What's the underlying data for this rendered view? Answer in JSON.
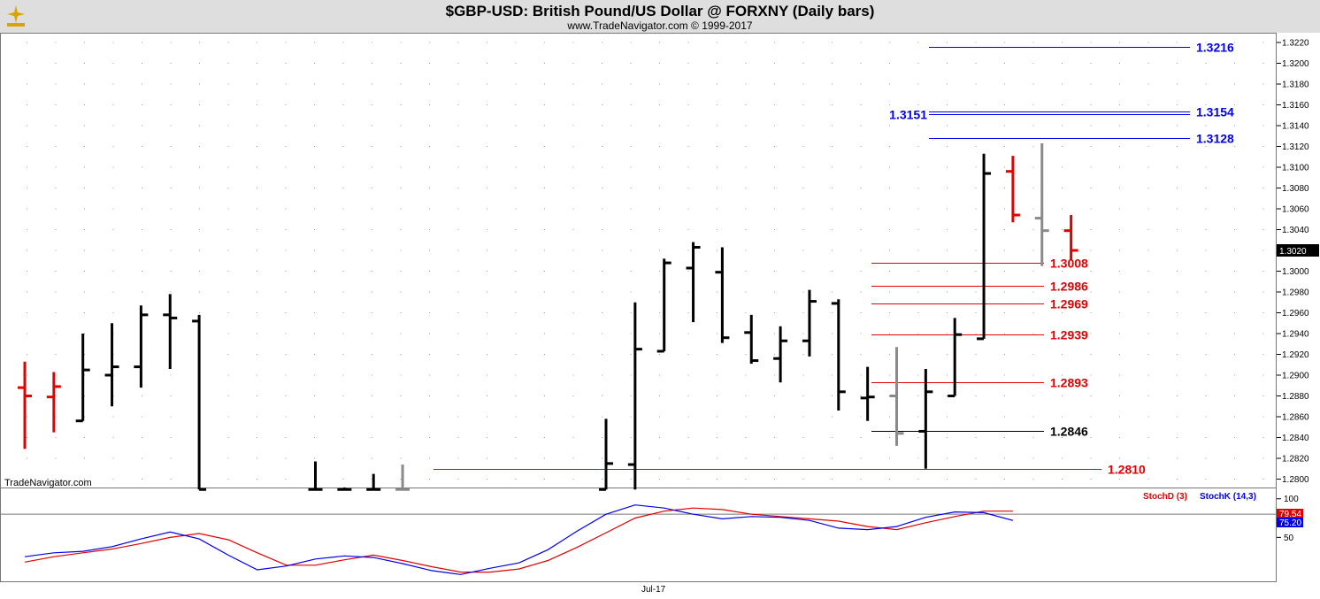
{
  "header": {
    "title": "$GBP-USD:  British Pound/US Dollar @ FORXNY  (Daily bars)",
    "subtitle": "www.TradeNavigator.com © 1999-2017",
    "watermark": "TradeNavigator.com",
    "xaxis_label": "Jul-17"
  },
  "colors": {
    "red": "#e30000",
    "blue": "#0000ee",
    "black": "#000000",
    "gray": "#8a8a8a",
    "grid": "#c8c8c8"
  },
  "chart_data": [
    {
      "type": "ohlc",
      "title": "$GBP-USD:  British Pound/US Dollar @ FORXNY  (Daily bars)",
      "ylim": [
        1.279,
        1.3228
      ],
      "yticks": [
        1.28,
        1.282,
        1.284,
        1.286,
        1.288,
        1.29,
        1.292,
        1.294,
        1.296,
        1.298,
        1.3,
        1.302,
        1.304,
        1.306,
        1.308,
        1.31,
        1.312,
        1.314,
        1.316,
        1.318,
        1.32,
        1.322
      ],
      "ytick_labels": [
        "1.2800",
        "1.2820",
        "1.2840",
        "1.2860",
        "1.2880",
        "1.2900",
        "1.2920",
        "1.2940",
        "1.2960",
        "1.2980",
        "1.3000",
        "1.3020",
        "1.3040",
        "1.3060",
        "1.3080",
        "1.3100",
        "1.3120",
        "1.3140",
        "1.3160",
        "1.3180",
        "1.3200",
        "1.3220"
      ],
      "last_price_label": "1.3020",
      "bars": [
        {
          "o": 1.2888,
          "h": 1.2913,
          "l": 1.2829,
          "c": 1.288,
          "color": "red"
        },
        {
          "o": 1.2879,
          "h": 1.2903,
          "l": 1.2845,
          "c": 1.2889,
          "color": "red"
        },
        {
          "o": 1.2856,
          "h": 1.294,
          "l": 1.2856,
          "c": 1.2905,
          "color": "black"
        },
        {
          "o": 1.29,
          "h": 1.295,
          "l": 1.287,
          "c": 1.2908,
          "color": "black"
        },
        {
          "o": 1.2908,
          "h": 1.2967,
          "l": 1.2888,
          "c": 1.2958,
          "color": "black"
        },
        {
          "o": 1.2958,
          "h": 1.2978,
          "l": 1.2906,
          "c": 1.2955,
          "color": "black"
        },
        {
          "o": 1.2952,
          "h": 1.2958,
          "l": 1.279,
          "c": 1.279,
          "color": "black"
        },
        null,
        null,
        null,
        {
          "o": 1.279,
          "h": 1.2817,
          "l": 1.279,
          "c": 1.279,
          "color": "black"
        },
        {
          "o": 1.279,
          "h": 1.2792,
          "l": 1.279,
          "c": 1.279,
          "color": "black"
        },
        {
          "o": 1.279,
          "h": 1.2805,
          "l": 1.279,
          "c": 1.279,
          "color": "black"
        },
        {
          "o": 1.279,
          "h": 1.2814,
          "l": 1.279,
          "c": 1.279,
          "color": "gray"
        },
        null,
        null,
        null,
        null,
        null,
        null,
        {
          "o": 1.279,
          "h": 1.2858,
          "l": 1.279,
          "c": 1.2815,
          "color": "black"
        },
        {
          "o": 1.2814,
          "h": 1.297,
          "l": 1.279,
          "c": 1.2925,
          "color": "black"
        },
        {
          "o": 1.2923,
          "h": 1.3012,
          "l": 1.2923,
          "c": 1.3008,
          "color": "black"
        },
        {
          "o": 1.3003,
          "h": 1.3028,
          "l": 1.2951,
          "c": 1.3023,
          "color": "black"
        },
        {
          "o": 1.2999,
          "h": 1.3023,
          "l": 1.2931,
          "c": 1.2936,
          "color": "black"
        },
        {
          "o": 1.2941,
          "h": 1.2958,
          "l": 1.2911,
          "c": 1.2914,
          "color": "black"
        },
        {
          "o": 1.2916,
          "h": 1.2947,
          "l": 1.2893,
          "c": 1.2933,
          "color": "black"
        },
        {
          "o": 1.2933,
          "h": 1.2982,
          "l": 1.2918,
          "c": 1.2971,
          "color": "black"
        },
        {
          "o": 1.2969,
          "h": 1.2973,
          "l": 1.2866,
          "c": 1.2884,
          "color": "black"
        },
        {
          "o": 1.2878,
          "h": 1.2908,
          "l": 1.2856,
          "c": 1.2879,
          "color": "black"
        },
        {
          "o": 1.288,
          "h": 1.2927,
          "l": 1.2832,
          "c": 1.2844,
          "color": "gray"
        },
        {
          "o": 1.2846,
          "h": 1.2906,
          "l": 1.281,
          "c": 1.2884,
          "color": "black"
        },
        {
          "o": 1.288,
          "h": 1.2955,
          "l": 1.288,
          "c": 1.2939,
          "color": "black"
        },
        {
          "o": 1.2935,
          "h": 1.3113,
          "l": 1.2935,
          "c": 1.3094,
          "color": "black"
        },
        {
          "o": 1.3096,
          "h": 1.3111,
          "l": 1.3047,
          "c": 1.3054,
          "color": "red"
        },
        {
          "o": 1.3051,
          "h": 1.3123,
          "l": 1.3005,
          "c": 1.3039,
          "color": "gray"
        },
        {
          "o": 1.3039,
          "h": 1.3054,
          "l": 1.3011,
          "c": 1.302,
          "color": "red"
        }
      ],
      "levels": [
        {
          "value": 1.3216,
          "label": "1.3216",
          "color": "blue"
        },
        {
          "value": 1.3154,
          "label": "1.3154",
          "color": "blue"
        },
        {
          "value": 1.3151,
          "label": "1.3151",
          "color": "blue"
        },
        {
          "value": 1.3128,
          "label": "1.3128",
          "color": "blue"
        },
        {
          "value": 1.3008,
          "label": "1.3008",
          "color": "red"
        },
        {
          "value": 1.2986,
          "label": "1.2986",
          "color": "red"
        },
        {
          "value": 1.2969,
          "label": "1.2969",
          "color": "red"
        },
        {
          "value": 1.2939,
          "label": "1.2939",
          "color": "red"
        },
        {
          "value": 1.2893,
          "label": "1.2893",
          "color": "red"
        },
        {
          "value": 1.2846,
          "label": "1.2846",
          "color": "black"
        },
        {
          "value": 1.281,
          "label": "1.2810",
          "color": "red"
        }
      ]
    },
    {
      "type": "line",
      "title": "",
      "ylim": [
        0,
        110
      ],
      "yticks": [
        50,
        100
      ],
      "ytick_labels": [
        "50",
        "100"
      ],
      "reference_line": 80,
      "series": [
        {
          "name": "StochD (3)",
          "color": "red",
          "values": [
            18,
            25,
            30,
            35,
            42,
            50,
            55,
            47,
            30,
            14,
            14,
            21,
            27,
            20,
            12,
            5,
            5,
            9,
            20,
            37,
            56,
            75,
            84,
            88,
            86,
            80,
            77,
            74,
            71,
            64,
            60,
            69,
            77,
            84,
            84
          ]
        },
        {
          "name": "StochK (14,3)",
          "color": "blue",
          "values": [
            25,
            30,
            32,
            38,
            48,
            57,
            48,
            27,
            8,
            13,
            22,
            26,
            24,
            16,
            7,
            2,
            10,
            17,
            34,
            58,
            80,
            92,
            88,
            80,
            74,
            77,
            76,
            72,
            62,
            60,
            64,
            76,
            83,
            82,
            72
          ]
        }
      ],
      "readouts": [
        {
          "label": "79.54",
          "color": "red"
        },
        {
          "label": "75.20",
          "color": "blue"
        }
      ]
    }
  ]
}
